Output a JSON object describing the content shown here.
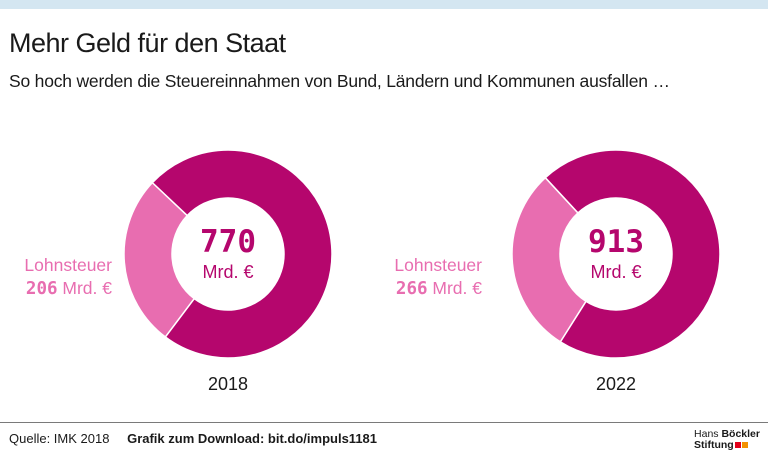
{
  "title": "Mehr Geld für den Staat",
  "subtitle": "So hoch werden die Steuereinnahmen von Bund, Ländern und Kommunen ausfallen …",
  "footer": {
    "source": "Quelle: IMK 2018",
    "download": "Grafik zum Download: bit.do/impuls1181"
  },
  "logo": {
    "line1_a": "Hans",
    "line1_b": "Böckler",
    "line2": "Stiftung"
  },
  "colors": {
    "total": "#b5066d",
    "lohnsteuer": "#e86db0",
    "logo_red": "#e2001a",
    "logo_orange": "#f39200"
  },
  "chart_data": [
    {
      "type": "pie",
      "year": "2018",
      "center_value": "770",
      "center_unit": "Mrd. €",
      "total": 770,
      "slices": [
        {
          "label": "Lohnsteuer",
          "value": 206,
          "unit": "Mrd. €"
        },
        {
          "label": "",
          "value": 564
        }
      ]
    },
    {
      "type": "pie",
      "year": "2022",
      "center_value": "913",
      "center_unit": "Mrd. €",
      "total": 913,
      "slices": [
        {
          "label": "Lohnsteuer",
          "value": 266,
          "unit": "Mrd. €"
        },
        {
          "label": "",
          "value": 647
        }
      ]
    }
  ]
}
